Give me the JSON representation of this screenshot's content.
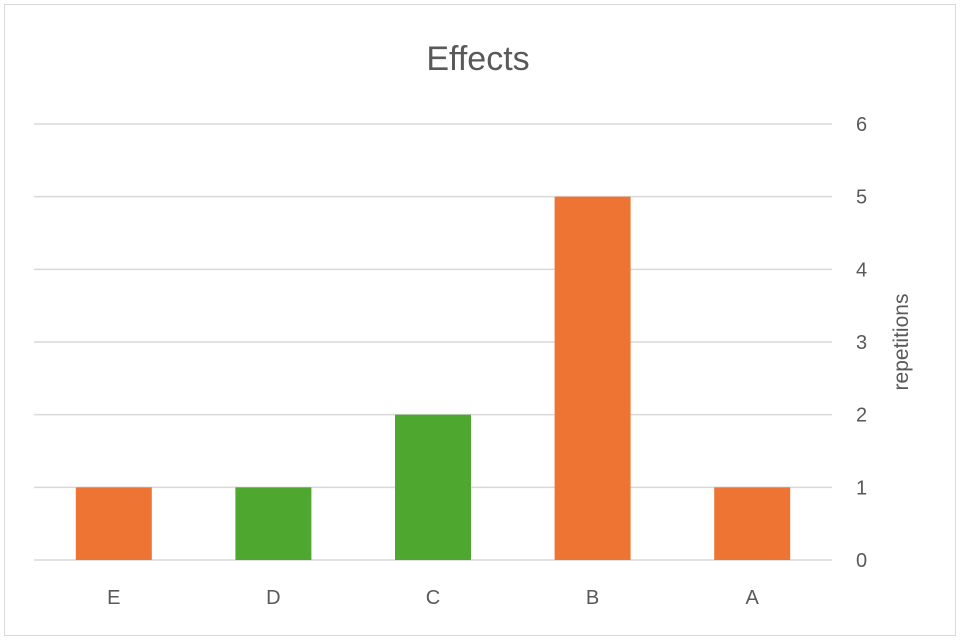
{
  "chart_data": {
    "type": "bar",
    "title": "Effects",
    "xlabel": "",
    "ylabel": "repetitions",
    "categories": [
      "E",
      "D",
      "C",
      "B",
      "A"
    ],
    "values": [
      1,
      1,
      2,
      5,
      1
    ],
    "bar_colors": [
      "#ED7433",
      "#4EA72E",
      "#4EA72E",
      "#ED7433",
      "#ED7433"
    ],
    "ylim": [
      0,
      6
    ],
    "yticks": [
      0,
      1,
      2,
      3,
      4,
      5,
      6
    ],
    "y_axis_side": "right",
    "grid": true,
    "legend": "none"
  }
}
